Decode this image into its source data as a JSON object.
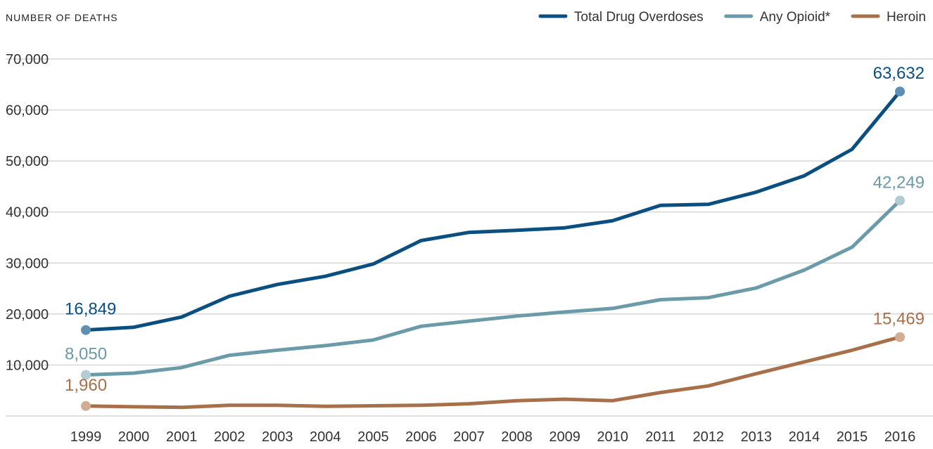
{
  "chart_data": {
    "type": "line",
    "title": "",
    "ylabel": "NUMBER OF DEATHS",
    "xlabel": "",
    "ylim": [
      0,
      70000
    ],
    "yticks": [
      10000,
      20000,
      30000,
      40000,
      50000,
      60000,
      70000
    ],
    "ytick_labels": [
      "10,000",
      "20,000",
      "30,000",
      "40,000",
      "50,000",
      "60,000",
      "70,000"
    ],
    "grid": true,
    "legend_position": "top-right",
    "x": [
      "1999",
      "2000",
      "2001",
      "2002",
      "2003",
      "2004",
      "2005",
      "2006",
      "2007",
      "2008",
      "2009",
      "2010",
      "2011",
      "2012",
      "2013",
      "2014",
      "2015",
      "2016"
    ],
    "series": [
      {
        "name": "Total Drug Overdoses",
        "color": "#0b4f80",
        "marker_color": "#5f8fb3",
        "values": [
          16849,
          17400,
          19400,
          23500,
          25800,
          27400,
          29800,
          34400,
          36000,
          36400,
          36900,
          38300,
          41300,
          41500,
          43900,
          47100,
          52300,
          63632
        ],
        "start_label": "16,849",
        "end_label": "63,632"
      },
      {
        "name": "Any Opioid*",
        "color": "#6b9aa8",
        "marker_color": "#b3ccd3",
        "values": [
          8050,
          8400,
          9500,
          11900,
          12900,
          13800,
          14900,
          17600,
          18600,
          19600,
          20400,
          21100,
          22800,
          23200,
          25100,
          28600,
          33100,
          42249
        ],
        "start_label": "8,050",
        "end_label": "42,249"
      },
      {
        "name": "Heroin",
        "color": "#a8704a",
        "marker_color": "#d1ae93",
        "values": [
          1960,
          1800,
          1700,
          2100,
          2100,
          1900,
          2000,
          2100,
          2400,
          3000,
          3300,
          3000,
          4600,
          5900,
          8300,
          10600,
          12900,
          15469
        ],
        "start_label": "1,960",
        "end_label": "15,469"
      }
    ]
  }
}
